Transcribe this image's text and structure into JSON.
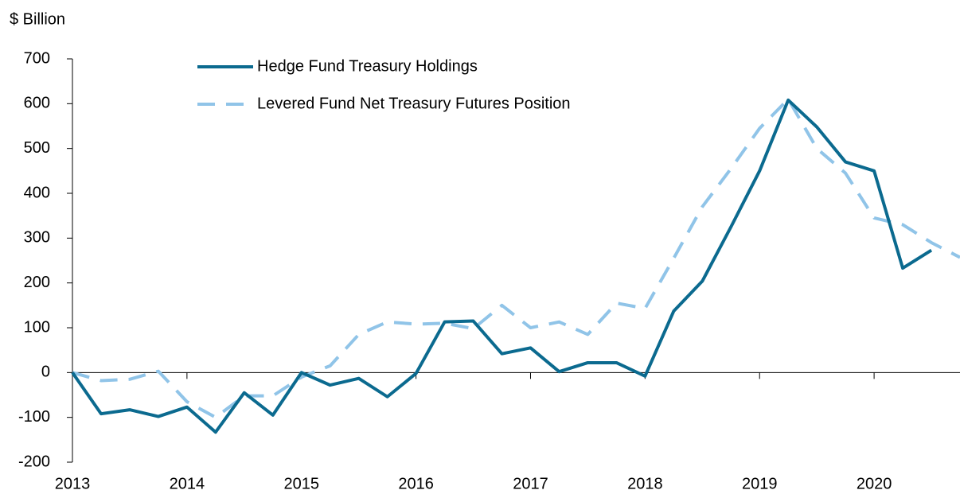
{
  "chart_data": {
    "type": "line",
    "y_axis_label": "$ Billion",
    "x": [
      2013,
      2013.25,
      2013.5,
      2013.75,
      2014,
      2014.25,
      2014.5,
      2014.75,
      2015,
      2015.25,
      2015.5,
      2015.75,
      2016,
      2016.25,
      2016.5,
      2016.75,
      2017,
      2017.25,
      2017.5,
      2017.75,
      2018,
      2018.25,
      2018.5,
      2018.75,
      2019,
      2019.25,
      2019.5,
      2019.75,
      2020,
      2020.25,
      2020.5,
      2020.75
    ],
    "series": [
      {
        "name": "Hedge Fund Treasury Holdings",
        "color": "#0b6a8f",
        "dash": false,
        "values": [
          0,
          -92,
          -83,
          -98,
          -77,
          -133,
          -45,
          -95,
          0,
          -28,
          -13,
          -54,
          -2,
          113,
          115,
          42,
          55,
          2,
          22,
          22,
          -8,
          137,
          204,
          325,
          450,
          608,
          548,
          470,
          450,
          233,
          273,
          null
        ]
      },
      {
        "name": "Levered Fund Net Treasury Futures Position",
        "color": "#90c4e8",
        "dash": true,
        "values": [
          0,
          -18,
          -15,
          3,
          -65,
          -100,
          -52,
          -52,
          -10,
          15,
          85,
          113,
          108,
          110,
          98,
          150,
          100,
          113,
          85,
          155,
          143,
          255,
          370,
          455,
          545,
          610,
          500,
          445,
          345,
          330,
          290,
          257
        ]
      }
    ],
    "xlim": [
      2013,
      2020.75
    ],
    "xticks": [
      2013,
      2014,
      2015,
      2016,
      2017,
      2018,
      2019,
      2020
    ],
    "ylim": [
      -200,
      700
    ],
    "yticks": [
      -200,
      -100,
      0,
      100,
      200,
      300,
      400,
      500,
      600,
      700
    ],
    "grid": false
  }
}
